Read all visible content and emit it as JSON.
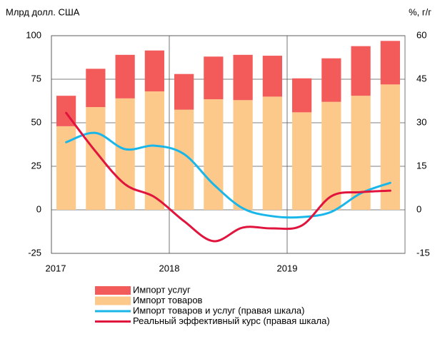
{
  "chart_data": {
    "type": "bar",
    "ylabel": "Млрд долл. США",
    "y2label": "%, г/г",
    "categories": [
      null,
      null,
      null,
      null,
      null,
      null,
      null,
      null,
      null,
      null,
      null,
      null
    ],
    "xlim": [
      0,
      12
    ],
    "xticks": [
      {
        "value": 0,
        "label": "2017"
      },
      {
        "value": 4,
        "label": "2018"
      },
      {
        "value": 8,
        "label": "2019"
      }
    ],
    "ylim": [
      -25,
      100
    ],
    "yticks": [
      -25,
      0,
      25,
      50,
      75,
      100
    ],
    "y2lim": [
      -15,
      60
    ],
    "y2ticks": [
      -15,
      0,
      15,
      30,
      45,
      60
    ],
    "grid": true,
    "legend": "bottom",
    "series": [
      {
        "name": "Импорт услуг",
        "type": "bar",
        "color": "#f35b5b",
        "values": [
          17.5,
          22,
          25,
          23.5,
          20.5,
          24.5,
          26,
          23.5,
          19.5,
          25,
          28.5,
          25
        ]
      },
      {
        "name": "Импорт товаров",
        "type": "bar",
        "color": "#fdc98a",
        "values": [
          48,
          59,
          64,
          68,
          57.5,
          63.5,
          63,
          65,
          56,
          62,
          65.5,
          72
        ]
      },
      {
        "name": "Импорт товаров и услуг (правая шкала)",
        "type": "line",
        "axis": "y2",
        "color": "#19b6ea",
        "values": [
          23.3,
          26.5,
          20.9,
          22.1,
          19.2,
          8.8,
          0.5,
          -2.2,
          -2.5,
          -0.7,
          5.7,
          9.3
        ]
      },
      {
        "name": "Реальный эффективный курс (правая шкала)",
        "type": "line",
        "axis": "y2",
        "color": "#e0143c",
        "values": [
          33.4,
          20.1,
          8.8,
          4.4,
          -3.9,
          -10.8,
          -6.1,
          -6.4,
          -5.4,
          4.7,
          6.1,
          6.6
        ]
      }
    ]
  }
}
